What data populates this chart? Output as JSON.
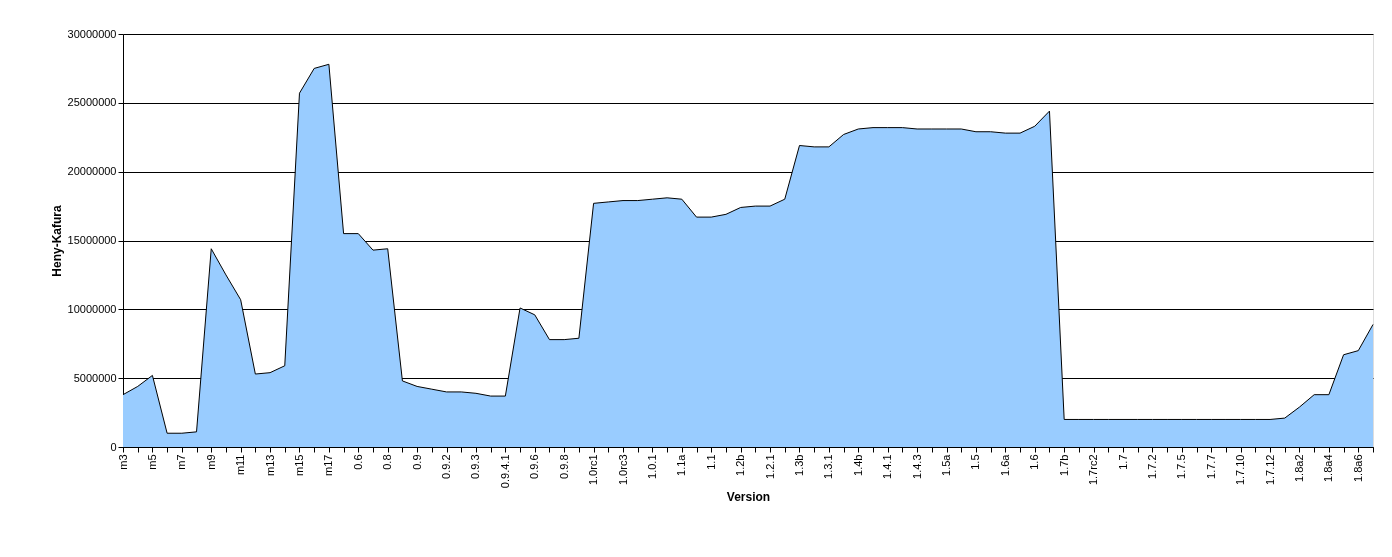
{
  "chart_data": {
    "type": "area",
    "xlabel": "Version",
    "ylabel": "Heny-Kafura",
    "categories": [
      "m3",
      null,
      "m5",
      null,
      "m7",
      null,
      "m9",
      null,
      "m11",
      null,
      "m13",
      null,
      "m15",
      null,
      "m17",
      null,
      "0.6",
      null,
      "0.8",
      null,
      "0.9",
      null,
      "0.9.2",
      null,
      "0.9.3",
      null,
      "0.9.4.1",
      null,
      "0.9.6",
      null,
      "0.9.8",
      null,
      "1.0rc1",
      null,
      "1.0rc3",
      null,
      "1.0.1",
      null,
      "1.1a",
      null,
      "1.1",
      null,
      "1.2b",
      null,
      "1.2.1",
      null,
      "1.3b",
      null,
      "1.3.1",
      null,
      "1.4b",
      null,
      "1.4.1",
      null,
      "1.4.3",
      null,
      "1.5a",
      null,
      "1.5",
      null,
      "1.6a",
      null,
      "1.6",
      null,
      "1.7b",
      null,
      "1.7rc2",
      null,
      "1.7",
      null,
      "1.7.2",
      null,
      "1.7.5",
      null,
      "1.7.7",
      null,
      "1.7.10",
      null,
      "1.7.12",
      null,
      "1.8a2",
      null,
      "1.8a4",
      null,
      "1.8a6",
      null
    ],
    "series": [
      {
        "color": "#99ccff",
        "values": [
          3800000,
          4400000,
          5200000,
          1000000,
          1000000,
          1100000,
          14400000,
          12500000,
          10700000,
          5300000,
          5400000,
          5900000,
          25700000,
          27500000,
          27800000,
          15500000,
          15500000,
          14300000,
          14400000,
          4800000,
          4400000,
          4200000,
          4000000,
          4000000,
          3900000,
          3700000,
          3700000,
          10100000,
          9600000,
          7800000,
          7800000,
          7900000,
          17700000,
          17800000,
          17900000,
          17900000,
          18000000,
          18100000,
          18000000,
          16700000,
          16700000,
          16900000,
          17400000,
          17500000,
          17500000,
          18000000,
          21900000,
          21800000,
          21800000,
          22700000,
          23100000,
          23200000,
          23200000,
          23200000,
          23100000,
          23100000,
          23100000,
          23100000,
          22900000,
          22900000,
          22800000,
          22800000,
          23300000,
          24400000,
          2000000,
          2000000,
          2000000,
          2000000,
          2000000,
          2000000,
          2000000,
          2000000,
          2000000,
          2000000,
          2000000,
          2000000,
          2000000,
          2000000,
          2000000,
          2100000,
          2900000,
          3800000,
          3800000,
          6700000,
          7000000,
          8900000
        ]
      }
    ],
    "ylim": [
      0,
      30000000
    ],
    "yticks": [
      0,
      5000000,
      10000000,
      15000000,
      20000000,
      25000000,
      30000000
    ],
    "grid": "y"
  }
}
